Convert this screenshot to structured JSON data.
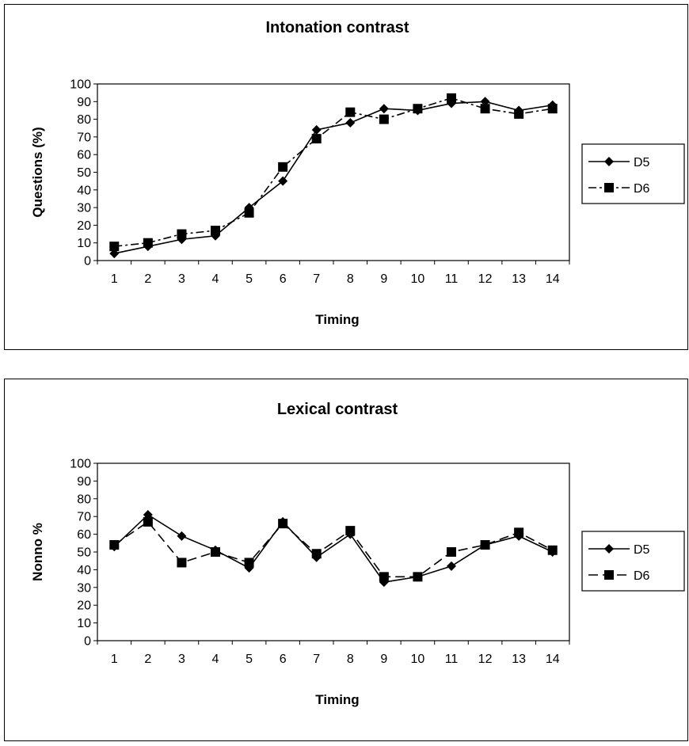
{
  "chart_data": [
    {
      "type": "line",
      "title": "Intonation contrast",
      "xlabel": "Timing",
      "ylabel": "Questions (%)",
      "categories": [
        "1",
        "2",
        "3",
        "4",
        "5",
        "6",
        "7",
        "8",
        "9",
        "10",
        "11",
        "12",
        "13",
        "14"
      ],
      "ylim": [
        0,
        100
      ],
      "yticks": [
        "0",
        "10",
        "20",
        "30",
        "40",
        "50",
        "60",
        "70",
        "80",
        "90",
        "100"
      ],
      "grid": false,
      "legend": "right",
      "series": [
        {
          "name": "D5",
          "marker": "diamond",
          "dash": "solid",
          "values": [
            4,
            8,
            12,
            14,
            30,
            45,
            74,
            78,
            86,
            85,
            89,
            90,
            85,
            88
          ]
        },
        {
          "name": "D6",
          "marker": "square",
          "dash": "dashdot",
          "values": [
            8,
            10,
            15,
            17,
            27,
            53,
            69,
            84,
            80,
            86,
            92,
            86,
            83,
            86
          ]
        }
      ]
    },
    {
      "type": "line",
      "title": "Lexical contrast",
      "xlabel": "Timing",
      "ylabel": "Nonno %",
      "categories": [
        "1",
        "2",
        "3",
        "4",
        "5",
        "6",
        "7",
        "8",
        "9",
        "10",
        "11",
        "12",
        "13",
        "14"
      ],
      "ylim": [
        0,
        100
      ],
      "yticks": [
        "0",
        "10",
        "20",
        "30",
        "40",
        "50",
        "60",
        "70",
        "80",
        "90",
        "100"
      ],
      "grid": false,
      "legend": "right",
      "series": [
        {
          "name": "D5",
          "marker": "diamond",
          "dash": "solid",
          "values": [
            53,
            71,
            59,
            51,
            41,
            67,
            47,
            60,
            33,
            36,
            42,
            54,
            59,
            50
          ]
        },
        {
          "name": "D6",
          "marker": "square",
          "dash": "dashed",
          "values": [
            54,
            67,
            44,
            50,
            44,
            66,
            49,
            62,
            36,
            36,
            50,
            54,
            61,
            51
          ]
        }
      ]
    }
  ]
}
